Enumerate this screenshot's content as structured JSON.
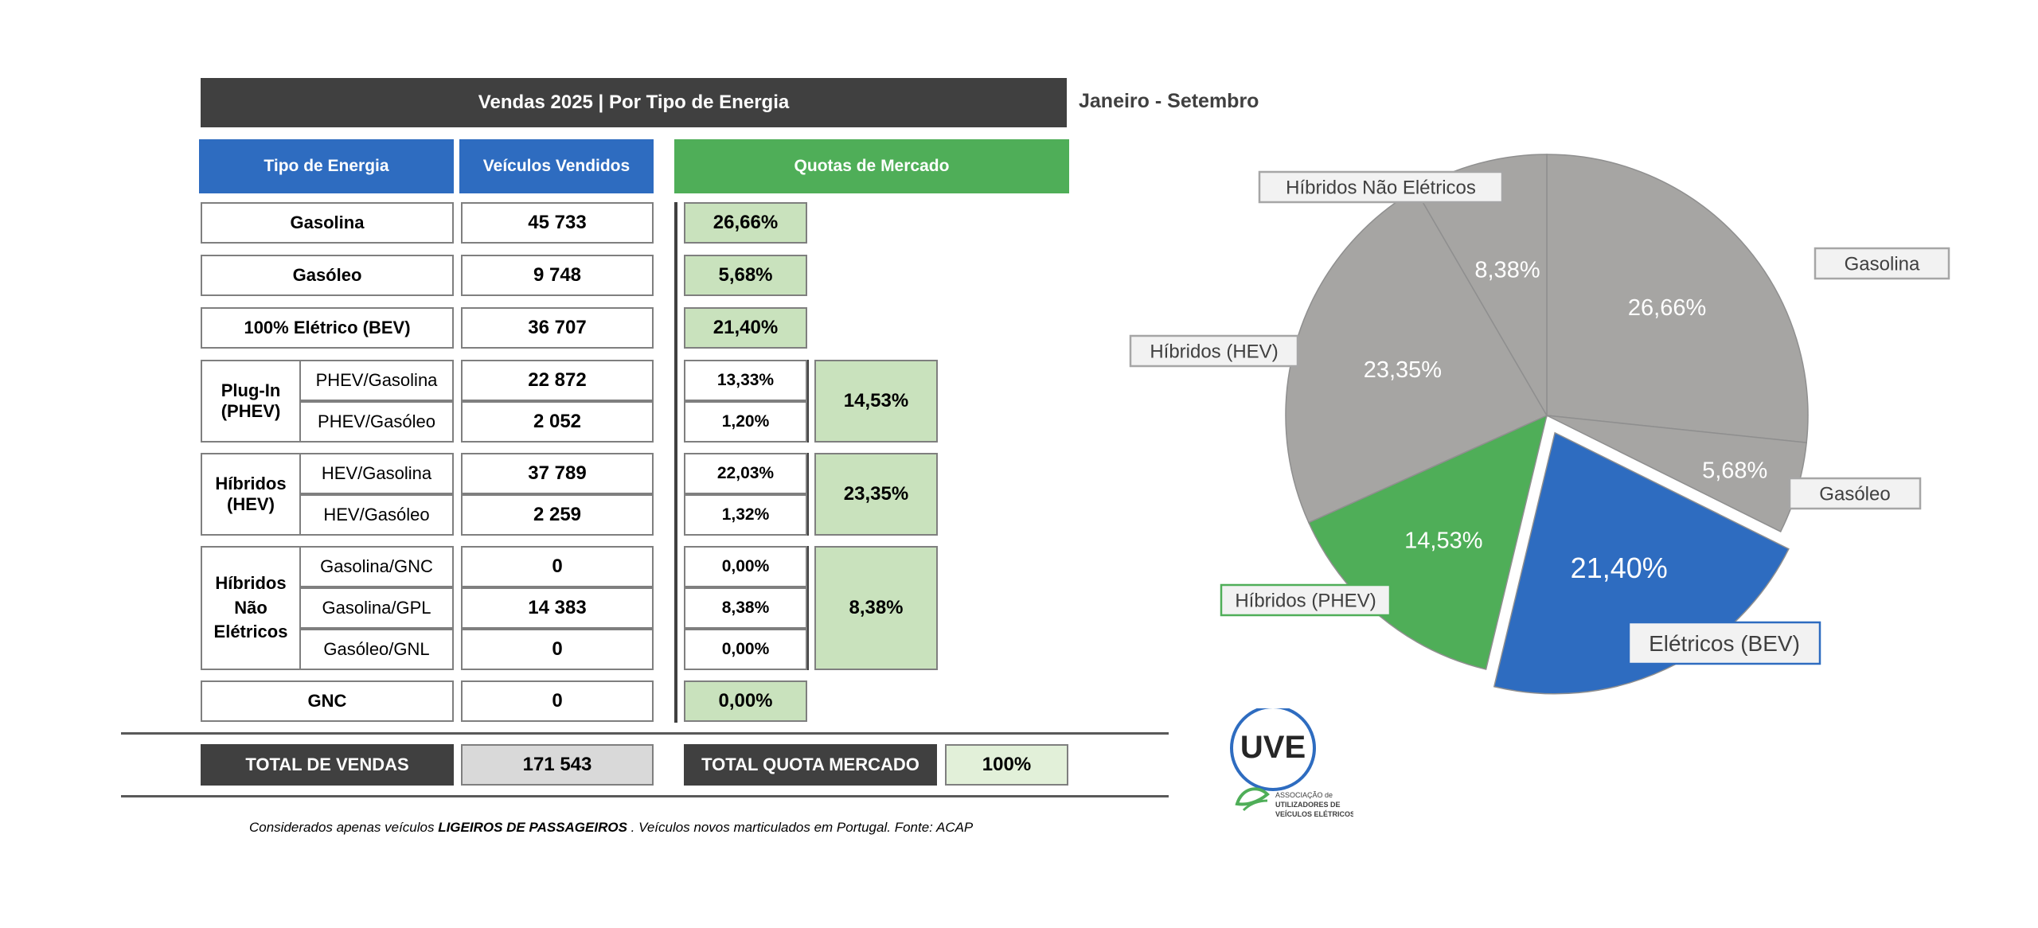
{
  "title": "Vendas 2025 | Por Tipo de Energia",
  "period": "Janeiro - Setembro",
  "headers": {
    "type": "Tipo de Energia",
    "sold": "Veículos Vendidos",
    "share": "Quotas de Mercado"
  },
  "rows": {
    "gasolina": {
      "label": "Gasolina",
      "sold": "45 733",
      "share": "26,66%"
    },
    "gasoleo": {
      "label": "Gasóleo",
      "sold": "9 748",
      "share": "5,68%"
    },
    "bev": {
      "label": "100% Elétrico (BEV)",
      "sold": "36 707",
      "share": "21,40%"
    },
    "phev": {
      "group": "Plug-In (PHEV)",
      "total": "14,53%",
      "sub1": {
        "label": "PHEV/Gasolina",
        "sold": "22 872",
        "share": "13,33%"
      },
      "sub2": {
        "label": "PHEV/Gasóleo",
        "sold": "2 052",
        "share": "1,20%"
      }
    },
    "hev": {
      "group": "Híbridos (HEV)",
      "total": "23,35%",
      "sub1": {
        "label": "HEV/Gasolina",
        "sold": "37 789",
        "share": "22,03%"
      },
      "sub2": {
        "label": "HEV/Gasóleo",
        "sold": "2 259",
        "share": "1,32%"
      }
    },
    "hne": {
      "group": "Híbridos Não Elétricos",
      "total": "8,38%",
      "sub1": {
        "label": "Gasolina/GNC",
        "sold": "0",
        "share": "0,00%"
      },
      "sub2": {
        "label": "Gasolina/GPL",
        "sold": "14 383",
        "share": "8,38%"
      },
      "sub3": {
        "label": "Gasóleo/GNL",
        "sold": "0",
        "share": "0,00%"
      }
    },
    "gnc": {
      "label": "GNC",
      "sold": "0",
      "share": "0,00%"
    }
  },
  "totals": {
    "sales_label": "TOTAL DE VENDAS",
    "sales_value": "171 543",
    "share_label": "TOTAL QUOTA MERCADO",
    "share_value": "100%"
  },
  "footnote": {
    "pre": "Considerados apenas veículos ",
    "bold": "LIGEIROS DE PASSAGEIROS",
    "post": " . Veículos novos marticulados em Portugal. Fonte: ACAP"
  },
  "logo": {
    "mark": "UVE",
    "line1": "ASSOCIAÇÃO de",
    "line2": "UTILIZADORES DE",
    "line3": "VEÍCULOS ELÉTRICOS"
  },
  "colors": {
    "dark": "#404040",
    "blue": "#2e6cc0",
    "green": "#4fae58",
    "light_green": "#c9e2bd",
    "grey": "#a6a6a6"
  },
  "chart_data": {
    "type": "pie",
    "start": "12 o'clock, clockwise",
    "slices": [
      {
        "name": "Gasolina",
        "value": 26.66,
        "label": "26,66%",
        "color": "#a6a5a3",
        "exploded": false
      },
      {
        "name": "Gasóleo",
        "value": 5.68,
        "label": "5,68%",
        "color": "#a6a5a3",
        "exploded": false
      },
      {
        "name": "Elétricos (BEV)",
        "value": 21.4,
        "label": "21,40%",
        "color": "#2e6cc0",
        "exploded": true
      },
      {
        "name": "Híbridos (PHEV)",
        "value": 14.53,
        "label": "14,53%",
        "color": "#4fae58",
        "exploded": false
      },
      {
        "name": "Híbridos (HEV)",
        "value": 23.35,
        "label": "23,35%",
        "color": "#a6a5a3",
        "exploded": false
      },
      {
        "name": "Híbridos Não Elétricos",
        "value": 8.38,
        "label": "8,38%",
        "color": "#a6a5a3",
        "exploded": false
      }
    ]
  }
}
